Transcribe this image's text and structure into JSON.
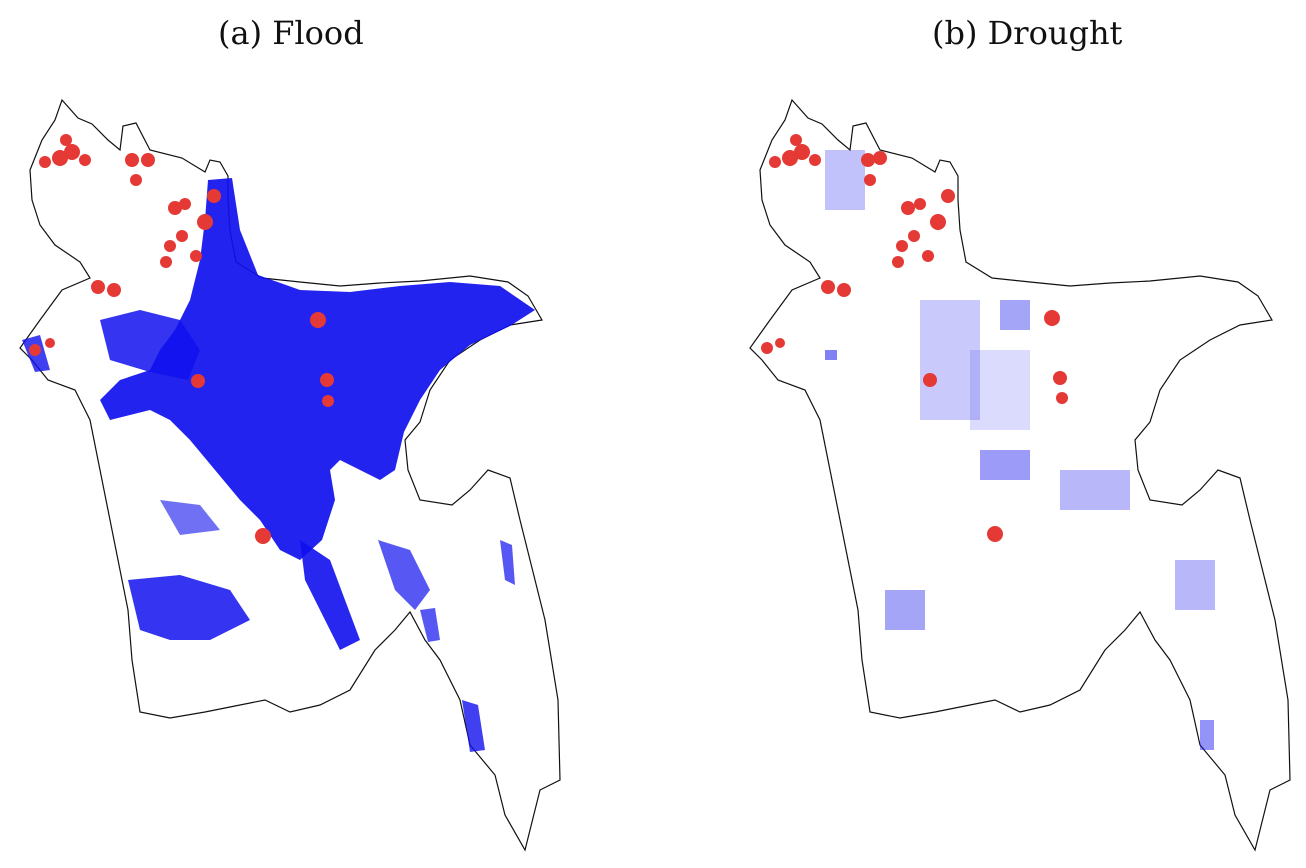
{
  "panels": [
    {
      "id": "flood",
      "title": "(a) Flood",
      "water_color": "#1010ee",
      "point_color": "#e53935",
      "outline_color": "#111111"
    },
    {
      "id": "drought",
      "title": "(b) Drought",
      "water_color": "#1010ee",
      "point_color": "#e53935",
      "outline_color": "#111111"
    }
  ]
}
